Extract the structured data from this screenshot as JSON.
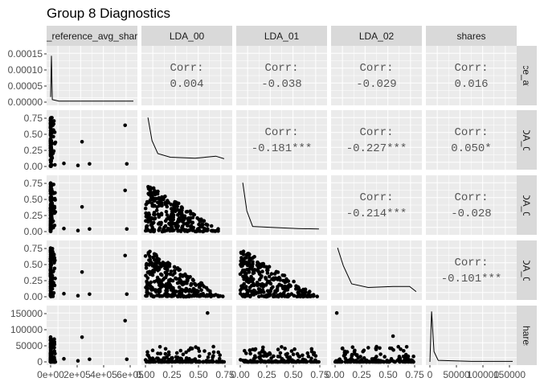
{
  "title": "Group 8 Diagnostics",
  "chart_data": {
    "type": "pairs",
    "title": "Group 8 Diagnostics",
    "variables": [
      "_reference_avg_shar",
      "LDA_00",
      "LDA_01",
      "LDA_02",
      "shares"
    ],
    "row_strip_labels": [
      "erence_avg_s",
      "LDA_00",
      "LDA_01",
      "LDA_02",
      "shares"
    ],
    "x_ticks": [
      [
        "0e+00",
        "2e+05",
        "4e+05",
        "6e+05"
      ],
      [
        "0.00",
        "0.25",
        "0.50",
        "0.75"
      ],
      [
        "0.00",
        "0.25",
        "0.50",
        "0.75"
      ],
      [
        "0.00",
        "0.25",
        "0.50",
        "0.75"
      ],
      [
        "0",
        "50000",
        "100000",
        "150000"
      ]
    ],
    "y_ticks": [
      [
        "0.00000",
        "0.00005",
        "0.00010",
        "0.00015"
      ],
      [
        "0.00",
        "0.25",
        "0.50",
        "0.75"
      ],
      [
        "0.00",
        "0.25",
        "0.50",
        "0.75"
      ],
      [
        "0.00",
        "0.25",
        "0.50",
        "0.75"
      ],
      [
        "0",
        "50000",
        "100000",
        "150000"
      ]
    ],
    "correlations": [
      {
        "row": 0,
        "col": 1,
        "label": "Corr:",
        "value": "0.004"
      },
      {
        "row": 0,
        "col": 2,
        "label": "Corr:",
        "value": "-0.038"
      },
      {
        "row": 0,
        "col": 3,
        "label": "Corr:",
        "value": "-0.029"
      },
      {
        "row": 0,
        "col": 4,
        "label": "Corr:",
        "value": "0.016"
      },
      {
        "row": 1,
        "col": 2,
        "label": "Corr:",
        "value": "-0.181***"
      },
      {
        "row": 1,
        "col": 3,
        "label": "Corr:",
        "value": "-0.227***"
      },
      {
        "row": 1,
        "col": 4,
        "label": "Corr:",
        "value": "0.050*"
      },
      {
        "row": 2,
        "col": 3,
        "label": "Corr:",
        "value": "-0.214***"
      },
      {
        "row": 2,
        "col": 4,
        "label": "Corr:",
        "value": "-0.028"
      },
      {
        "row": 3,
        "col": 4,
        "label": "Corr:",
        "value": "-0.101***"
      }
    ],
    "grid": true,
    "colors": {
      "panel_bg": "#ebebeb",
      "strip_bg": "#d9d9d9",
      "grid": "#ffffff",
      "points": "#000000",
      "corr_text": "#555555"
    }
  }
}
